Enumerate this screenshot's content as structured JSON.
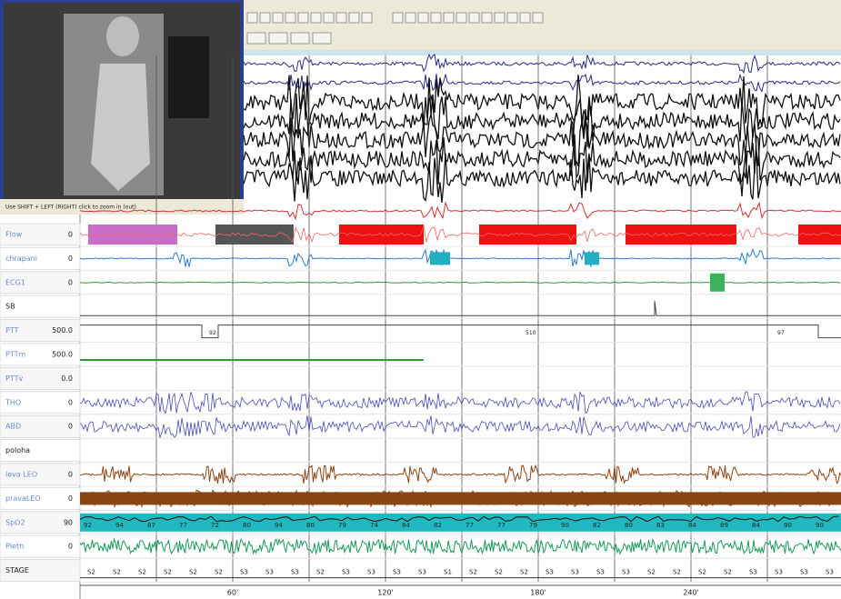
{
  "video": {
    "hint": "Use SHIFT + LEFT (RIGHT) click to zoom in (out)"
  },
  "channels": [
    {
      "label": "Flow",
      "scale": "0"
    },
    {
      "label": "chrapani",
      "scale": "0"
    },
    {
      "label": "ECG1",
      "scale": "0"
    },
    {
      "label": "SB",
      "scale": ""
    },
    {
      "label": "PTT",
      "scale": "500.0"
    },
    {
      "label": "PTTm",
      "scale": "500.0"
    },
    {
      "label": "PTTv",
      "scale": "0.0"
    },
    {
      "label": "THO",
      "scale": "0"
    },
    {
      "label": "ABD",
      "scale": "0"
    },
    {
      "label": "poloha",
      "scale": ""
    },
    {
      "label": "leva LEO",
      "scale": "0"
    },
    {
      "label": "pravaLEO",
      "scale": "0"
    },
    {
      "label": "SpO2",
      "scale": "90"
    },
    {
      "label": "Pleth",
      "scale": "0"
    },
    {
      "label": "STAGE",
      "scale": ""
    }
  ],
  "time_axis": [
    "60'",
    "120'",
    "180'",
    "240'"
  ],
  "ptt_labels": [
    "92",
    "510",
    "97"
  ],
  "spo2_labels": [
    "92",
    "94",
    "87",
    "77",
    "72",
    "80",
    "94",
    "80",
    "79",
    "74",
    "84",
    "82",
    "77",
    "77",
    "79",
    "90",
    "82",
    "80",
    "83",
    "84",
    "89",
    "84",
    "90",
    "90"
  ],
  "stages": [
    "S2",
    "S2",
    "S2",
    "S2",
    "S2",
    "S2",
    "S3",
    "S3",
    "S3",
    "S2",
    "S3",
    "S3",
    "S3",
    "S3",
    "S1",
    "S2",
    "S2",
    "S2",
    "S3",
    "S3",
    "S3",
    "S3",
    "S2",
    "S2",
    "S2",
    "S2",
    "S3",
    "S3",
    "S3",
    "S3"
  ]
}
